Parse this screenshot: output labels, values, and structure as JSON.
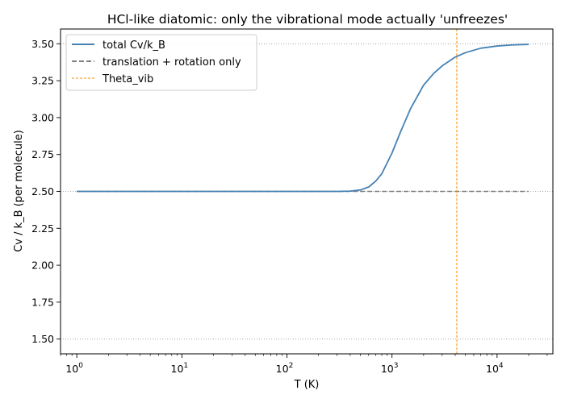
{
  "chart_data": {
    "type": "line",
    "title": "HCl-like diatomic: only the vibrational mode actually 'unfreezes'",
    "xlabel": "T (K)",
    "ylabel": "Cv / k_B (per molecule)",
    "x_scale": "log",
    "xlim": [
      0.7,
      34000
    ],
    "ylim": [
      1.4,
      3.6
    ],
    "x_ticks": [
      {
        "value": 1,
        "base": "10",
        "exp": "0"
      },
      {
        "value": 10,
        "base": "10",
        "exp": "1"
      },
      {
        "value": 100,
        "base": "10",
        "exp": "2"
      },
      {
        "value": 1000,
        "base": "10",
        "exp": "3"
      },
      {
        "value": 10000,
        "base": "10",
        "exp": "4"
      }
    ],
    "y_ticks": [
      "1.50",
      "1.75",
      "2.00",
      "2.25",
      "2.50",
      "2.75",
      "3.00",
      "3.25",
      "3.50"
    ],
    "reference_lines_y": [
      1.5,
      2.5,
      3.5
    ],
    "theta_vib": 4140,
    "series": [
      {
        "name": "total Cv/k_B",
        "color": "#4682b4",
        "style": "solid",
        "x": [
          1,
          10,
          100,
          300,
          400,
          500,
          600,
          700,
          800,
          1000,
          1200,
          1500,
          2000,
          2500,
          3000,
          4000,
          5000,
          7000,
          10000,
          14000,
          20000
        ],
        "y": [
          2.5,
          2.5,
          2.5,
          2.5,
          2.502,
          2.51,
          2.53,
          2.57,
          2.62,
          2.76,
          2.9,
          3.06,
          3.22,
          3.3,
          3.35,
          3.41,
          3.44,
          3.47,
          3.485,
          3.492,
          3.496
        ]
      },
      {
        "name": "translation + rotation only",
        "color": "#808080",
        "style": "dashed",
        "x": [
          1,
          20000
        ],
        "y": [
          2.5,
          2.5
        ]
      },
      {
        "name": "Theta_vib",
        "color": "#ff8c00",
        "style": "dashed-vertical"
      }
    ],
    "legend_position": "top-left"
  }
}
